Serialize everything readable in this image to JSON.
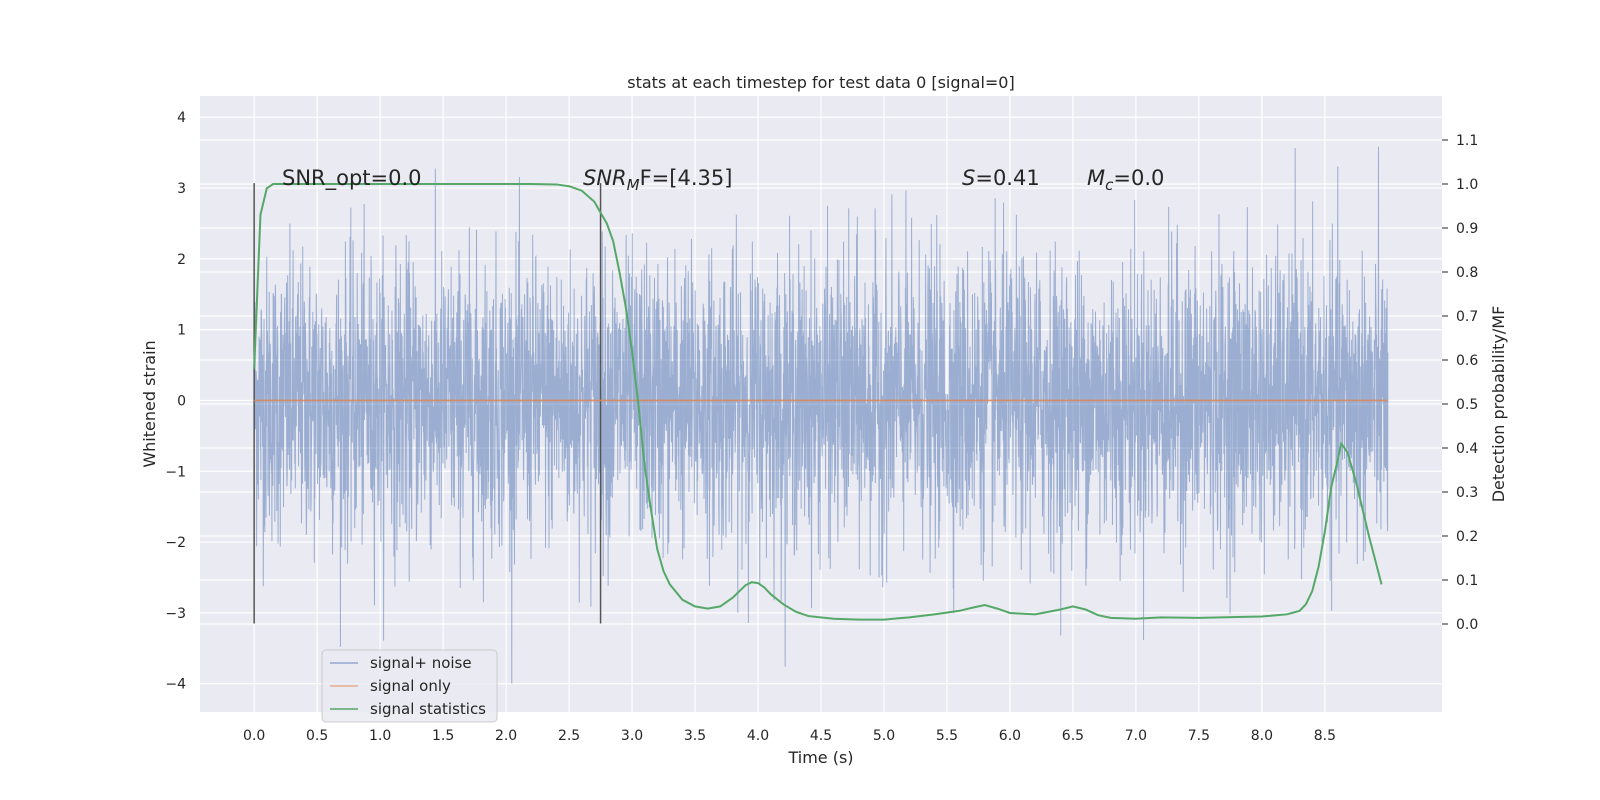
{
  "chart_data": {
    "type": "line",
    "title": "stats at each timestep for test data 0 [signal=0]",
    "xlabel": "Time (s)",
    "ylabel": "Whitened strain",
    "y2label": "Detection probability/MF",
    "xlim": [
      -0.43,
      9.43
    ],
    "ylim": [
      -4.4,
      4.3
    ],
    "y2lim": [
      -0.2,
      1.2
    ],
    "x_ticks": [
      "0.0",
      "0.5",
      "1.0",
      "1.5",
      "2.0",
      "2.5",
      "3.0",
      "3.5",
      "4.0",
      "4.5",
      "5.0",
      "5.5",
      "6.0",
      "6.5",
      "7.0",
      "7.5",
      "8.0",
      "8.5"
    ],
    "y_ticks": [
      "−4",
      "−3",
      "−2",
      "−1",
      "0",
      "1",
      "2",
      "3",
      "4"
    ],
    "y2_ticks": [
      "0.0",
      "0.1",
      "0.2",
      "0.3",
      "0.4",
      "0.5",
      "0.6",
      "0.7",
      "0.8",
      "0.9",
      "1.0",
      "1.1"
    ],
    "grid": true,
    "legend_position": "lower-left",
    "annotations": {
      "snr_opt": "SNR_opt=0.0",
      "snr_mf_main": "SNR",
      "snr_mf_sub": "M",
      "snr_mf_tail": "F=[4.35]",
      "s_main": "S",
      "s_tail": "=0.41",
      "mc_main": "M",
      "mc_sub": "c",
      "mc_tail": "=0.0"
    },
    "vlines": [
      0.0,
      2.75
    ],
    "series": [
      {
        "name": "signal+ noise",
        "color": "#4c72b0",
        "axis": "left",
        "x_range": [
          0.0,
          9.0
        ],
        "points": 4600,
        "std": 1.0,
        "amplitude_range": [
          -4.0,
          3.9
        ]
      },
      {
        "name": "signal only",
        "color": "#dd8452",
        "axis": "left",
        "x": [
          0.0,
          9.0
        ],
        "y": [
          0.0,
          0.0
        ]
      },
      {
        "name": "signal statistics",
        "color": "#55a868",
        "axis": "right",
        "x": [
          0.0,
          0.05,
          0.1,
          0.15,
          0.2,
          0.3,
          0.5,
          1.0,
          1.5,
          2.0,
          2.2,
          2.4,
          2.5,
          2.6,
          2.7,
          2.8,
          2.85,
          2.9,
          2.95,
          3.0,
          3.05,
          3.1,
          3.15,
          3.2,
          3.25,
          3.3,
          3.4,
          3.5,
          3.6,
          3.7,
          3.8,
          3.9,
          3.95,
          4.0,
          4.05,
          4.1,
          4.2,
          4.3,
          4.4,
          4.6,
          4.8,
          5.0,
          5.2,
          5.4,
          5.6,
          5.7,
          5.8,
          5.9,
          6.0,
          6.2,
          6.4,
          6.5,
          6.6,
          6.7,
          6.8,
          7.0,
          7.2,
          7.5,
          7.8,
          8.0,
          8.2,
          8.3,
          8.35,
          8.4,
          8.45,
          8.5,
          8.55,
          8.6,
          8.63,
          8.68,
          8.75,
          8.85,
          8.95
        ],
        "y": [
          0.58,
          0.93,
          0.99,
          1.0,
          1.0,
          1.0,
          1.0,
          1.0,
          1.0,
          1.0,
          1.0,
          0.999,
          0.995,
          0.985,
          0.96,
          0.91,
          0.87,
          0.8,
          0.72,
          0.62,
          0.5,
          0.36,
          0.26,
          0.17,
          0.12,
          0.09,
          0.055,
          0.04,
          0.035,
          0.04,
          0.06,
          0.088,
          0.095,
          0.093,
          0.083,
          0.068,
          0.045,
          0.028,
          0.018,
          0.012,
          0.01,
          0.01,
          0.015,
          0.022,
          0.03,
          0.037,
          0.043,
          0.035,
          0.025,
          0.022,
          0.033,
          0.04,
          0.033,
          0.02,
          0.014,
          0.012,
          0.015,
          0.014,
          0.016,
          0.017,
          0.022,
          0.03,
          0.045,
          0.075,
          0.13,
          0.21,
          0.31,
          0.37,
          0.41,
          0.39,
          0.32,
          0.2,
          0.09
        ]
      }
    ]
  }
}
